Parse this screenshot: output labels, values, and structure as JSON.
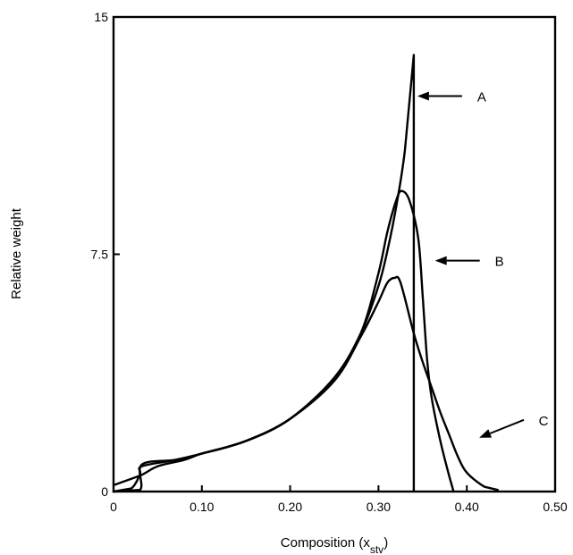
{
  "chart_data": {
    "type": "line",
    "title": "",
    "xlabel": "Composition (x",
    "xlabel_sub": "stv",
    "xlabel_close": ")",
    "ylabel": "Relative weight",
    "xlim": [
      0,
      0.5
    ],
    "ylim": [
      0,
      15
    ],
    "x_ticks": [
      0,
      0.1,
      0.2,
      0.3,
      0.4,
      0.5
    ],
    "x_tick_labels": [
      "0",
      "0.10",
      "0.20",
      "0.30",
      "0.40",
      "0.50"
    ],
    "y_ticks": [
      0,
      7.5,
      15
    ],
    "y_tick_labels": [
      "0",
      "7.5",
      "15"
    ],
    "grid": false,
    "series": [
      {
        "name": "A",
        "points": [
          [
            0,
            0
          ],
          [
            0.03,
            0.05
          ],
          [
            0.032,
            0.85
          ],
          [
            0.07,
            1.0
          ],
          [
            0.1,
            1.2
          ],
          [
            0.15,
            1.6
          ],
          [
            0.2,
            2.3
          ],
          [
            0.25,
            3.6
          ],
          [
            0.28,
            5.0
          ],
          [
            0.3,
            6.5
          ],
          [
            0.31,
            7.6
          ],
          [
            0.32,
            9.0
          ],
          [
            0.33,
            10.8
          ],
          [
            0.34,
            13.8
          ],
          [
            0.34,
            0
          ]
        ]
      },
      {
        "name": "B",
        "points": [
          [
            0,
            0
          ],
          [
            0.02,
            0.1
          ],
          [
            0.03,
            0.55
          ],
          [
            0.032,
            0.8
          ],
          [
            0.07,
            1.0
          ],
          [
            0.1,
            1.2
          ],
          [
            0.15,
            1.6
          ],
          [
            0.2,
            2.3
          ],
          [
            0.25,
            3.6
          ],
          [
            0.28,
            5.0
          ],
          [
            0.3,
            6.9
          ],
          [
            0.31,
            8.2
          ],
          [
            0.32,
            9.2
          ],
          [
            0.326,
            9.5
          ],
          [
            0.335,
            9.2
          ],
          [
            0.345,
            8.0
          ],
          [
            0.35,
            6.2
          ],
          [
            0.355,
            4.2
          ],
          [
            0.36,
            3.0
          ],
          [
            0.37,
            1.6
          ],
          [
            0.38,
            0.5
          ],
          [
            0.385,
            0
          ]
        ]
      },
      {
        "name": "C",
        "points": [
          [
            0,
            0.2
          ],
          [
            0.03,
            0.5
          ],
          [
            0.05,
            0.8
          ],
          [
            0.08,
            1.0
          ],
          [
            0.1,
            1.2
          ],
          [
            0.15,
            1.6
          ],
          [
            0.2,
            2.3
          ],
          [
            0.25,
            3.5
          ],
          [
            0.28,
            4.9
          ],
          [
            0.3,
            6.0
          ],
          [
            0.31,
            6.6
          ],
          [
            0.318,
            6.75
          ],
          [
            0.325,
            6.6
          ],
          [
            0.34,
            5.0
          ],
          [
            0.35,
            4.1
          ],
          [
            0.36,
            3.3
          ],
          [
            0.37,
            2.5
          ],
          [
            0.38,
            1.8
          ],
          [
            0.39,
            1.1
          ],
          [
            0.4,
            0.6
          ],
          [
            0.42,
            0.15
          ],
          [
            0.435,
            0.05
          ]
        ]
      }
    ],
    "annotations": [
      {
        "label": "A",
        "arrow_to": [
          0.34,
          12.5
        ]
      },
      {
        "label": "B",
        "arrow_to": [
          0.36,
          7.3
        ]
      },
      {
        "label": "C",
        "arrow_to": [
          0.41,
          1.7
        ]
      }
    ]
  }
}
